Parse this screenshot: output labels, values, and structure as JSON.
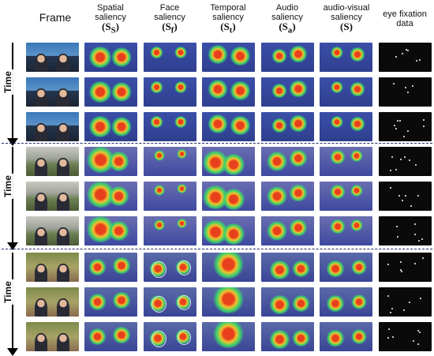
{
  "headers": {
    "frame": "Frame",
    "spatial": {
      "line1": "Spatial",
      "line2": "saliency",
      "sym": "(S",
      "sub": "S",
      "close": ")"
    },
    "face": {
      "line1": "Face",
      "line2": "saliency",
      "sym": "(S",
      "sub": "f",
      "close": ")"
    },
    "temporal": {
      "line1": "Temporal",
      "line2": "saliency",
      "sym": "(S",
      "sub": "t",
      "close": ")"
    },
    "audio": {
      "line1": "Audio",
      "line2": "saliency",
      "sym": "(S",
      "sub": "a",
      "close": ")"
    },
    "av": {
      "line1": "audio-visual",
      "line2": "saliency",
      "sym": "(S)"
    },
    "eye": {
      "line1": "eye fixation",
      "line2": "data"
    }
  },
  "time_label": "Time",
  "groups": [
    {
      "scene": "news-studio",
      "rows": 3
    },
    {
      "scene": "outdoor-police",
      "rows": 3
    },
    {
      "scene": "indoor-women",
      "rows": 3
    }
  ],
  "colors": {
    "separator": "#1e2a6b",
    "heat_low": "#2b2f9a",
    "heat_mid": "#3bd26b",
    "heat_high": "#e8401c"
  }
}
